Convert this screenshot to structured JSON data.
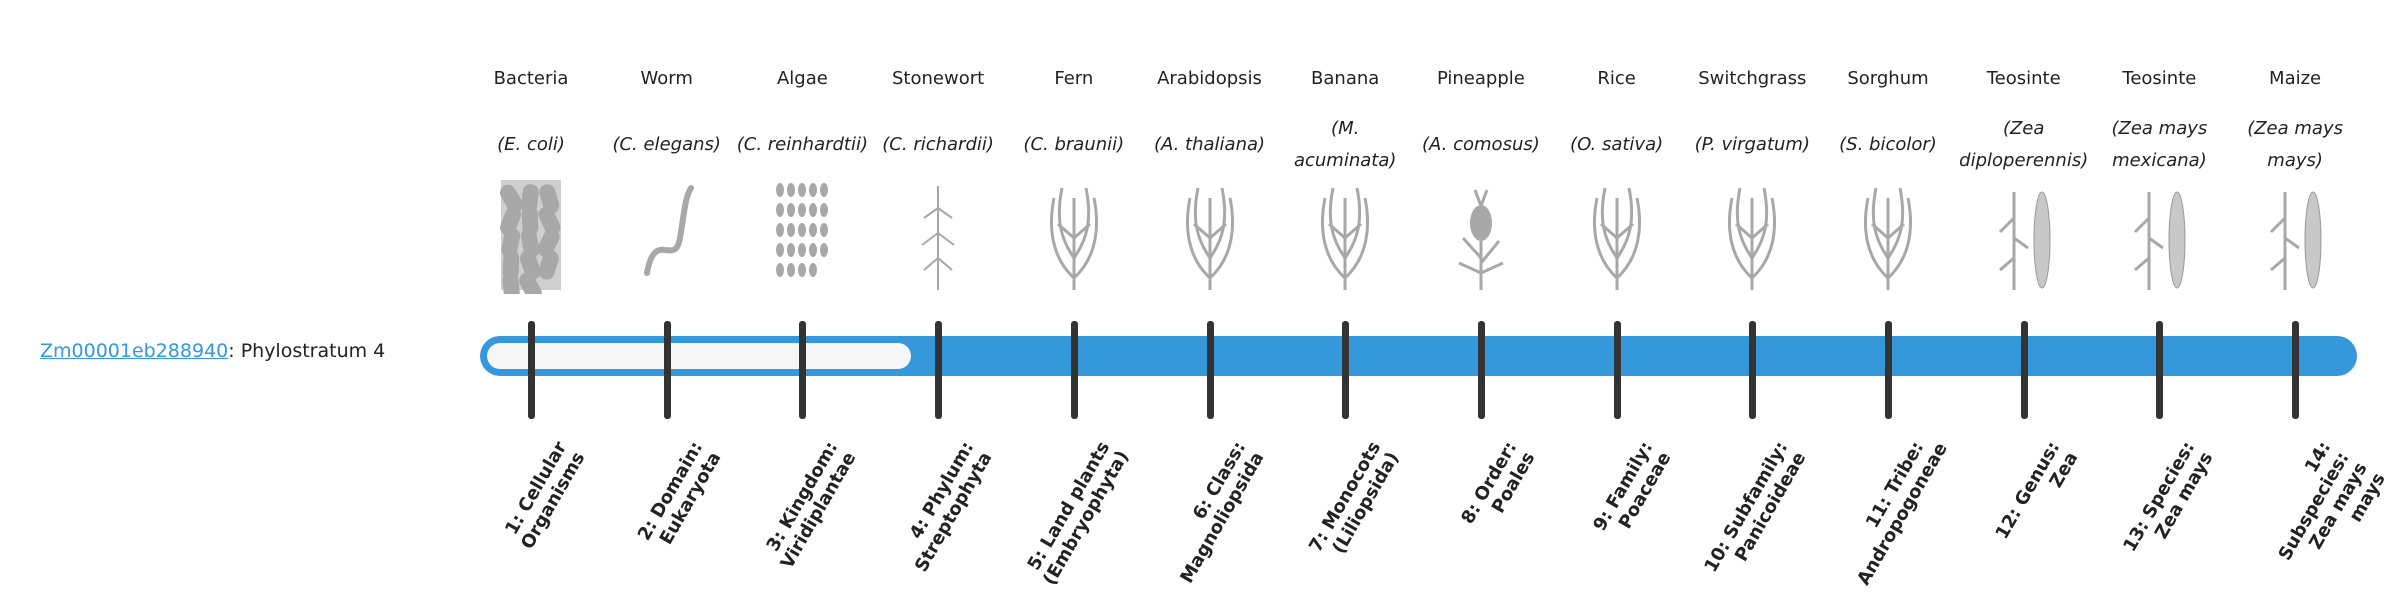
{
  "gene": {
    "id": "Zm00001eb288940",
    "suffix": ": Phylostratum 4"
  },
  "phylostratum": 4,
  "colors": {
    "bar": "#3498db",
    "empty": "#f6f6f6",
    "tick": "#333333",
    "link": "#3498db"
  },
  "organisms": [
    {
      "common": "Bacteria",
      "latin": "(E. coli)",
      "icon": "bacteria-icon"
    },
    {
      "common": "Worm",
      "latin": "(C. elegans)",
      "icon": "worm-icon"
    },
    {
      "common": "Algae",
      "latin": "(C. reinhardtii)",
      "icon": "algae-icon"
    },
    {
      "common": "Stonewort",
      "latin": "(C. richardii)",
      "icon": "stonewort-icon"
    },
    {
      "common": "Fern",
      "latin": "(C. braunii)",
      "icon": "fern-icon"
    },
    {
      "common": "Arabidopsis",
      "latin": "(A. thaliana)",
      "icon": "arabidopsis-icon"
    },
    {
      "common": "Banana",
      "latin": "(M. acuminata)",
      "icon": "banana-icon"
    },
    {
      "common": "Pineapple",
      "latin": "(A. comosus)",
      "icon": "pineapple-icon"
    },
    {
      "common": "Rice",
      "latin": "(O. sativa)",
      "icon": "rice-icon"
    },
    {
      "common": "Switchgrass",
      "latin": "(P. virgatum)",
      "icon": "switchgrass-icon"
    },
    {
      "common": "Sorghum",
      "latin": "(S. bicolor)",
      "icon": "sorghum-icon"
    },
    {
      "common": "Teosinte",
      "latin": "(Zea diploperennis)",
      "icon": "teosinte-icon"
    },
    {
      "common": "Teosinte",
      "latin": "(Zea mays mexicana)",
      "icon": "teosinte-icon"
    },
    {
      "common": "Maize",
      "latin": "(Zea mays mays)",
      "icon": "maize-icon"
    }
  ],
  "strata": [
    "1: Cellular Organisms",
    "2: Domain: Eukaryota",
    "3: Kingdom: Viridiplantae",
    "4: Phylum: Streptophyta",
    "5: Land plants (Embryophyta)",
    "6: Class: Magnoliopsida",
    "7: Monocots (Liliopsida)",
    "8: Order: Poales",
    "9: Family: Poaceae",
    "10: Subfamily: Panicoideae",
    "11: Tribe: Andropogoneae",
    "12: Genus: Zea",
    "13: Species: Zea mays",
    "14: Subspecies: Zea mays mays"
  ]
}
